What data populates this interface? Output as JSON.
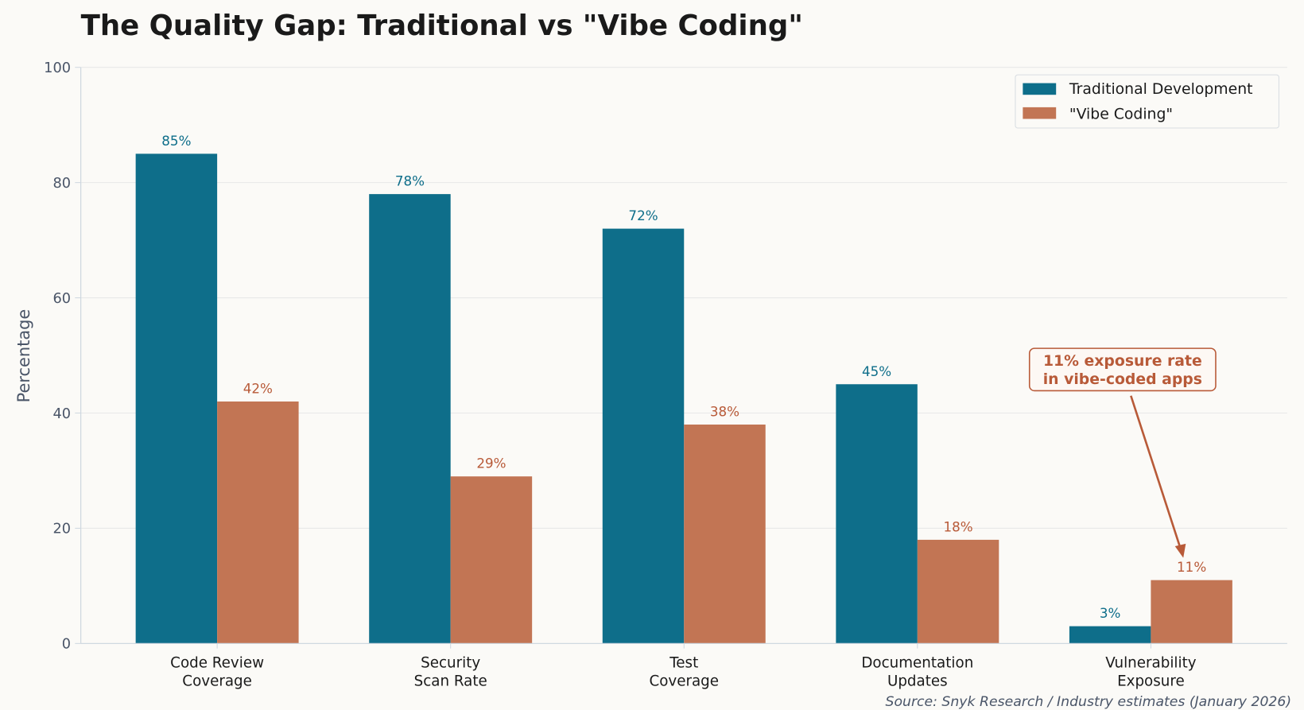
{
  "chart_data": {
    "type": "bar",
    "title": "The Quality Gap: Traditional vs \"Vibe Coding\"",
    "xlabel": "",
    "ylabel": "Percentage",
    "ylim": [
      0,
      100
    ],
    "yticks": [
      "0",
      "20",
      "40",
      "60",
      "80",
      "100"
    ],
    "grid": true,
    "legend_position": "top-right",
    "categories": [
      [
        "Code Review",
        "Coverage"
      ],
      [
        "Security",
        "Scan Rate"
      ],
      [
        "Test",
        "Coverage"
      ],
      [
        "Documentation",
        "Updates"
      ],
      [
        "Vulnerability",
        "Exposure"
      ]
    ],
    "series": [
      {
        "name": "Traditional Development",
        "color": "#0e6e8a",
        "values": [
          85,
          78,
          72,
          45,
          3
        ],
        "labels": [
          "85%",
          "78%",
          "72%",
          "45%",
          "3%"
        ]
      },
      {
        "name": "\"Vibe Coding\"",
        "color": "#c27554",
        "values": [
          42,
          29,
          38,
          18,
          11
        ],
        "labels": [
          "42%",
          "29%",
          "38%",
          "18%",
          "11%"
        ]
      }
    ],
    "annotation": {
      "lines": [
        "11% exposure rate",
        "in vibe-coded apps"
      ],
      "color": "#b85a38",
      "points_to": {
        "category": 4,
        "series": 1,
        "value": 11
      }
    },
    "source": "Source: Snyk Research / Industry estimates (January 2026)"
  }
}
